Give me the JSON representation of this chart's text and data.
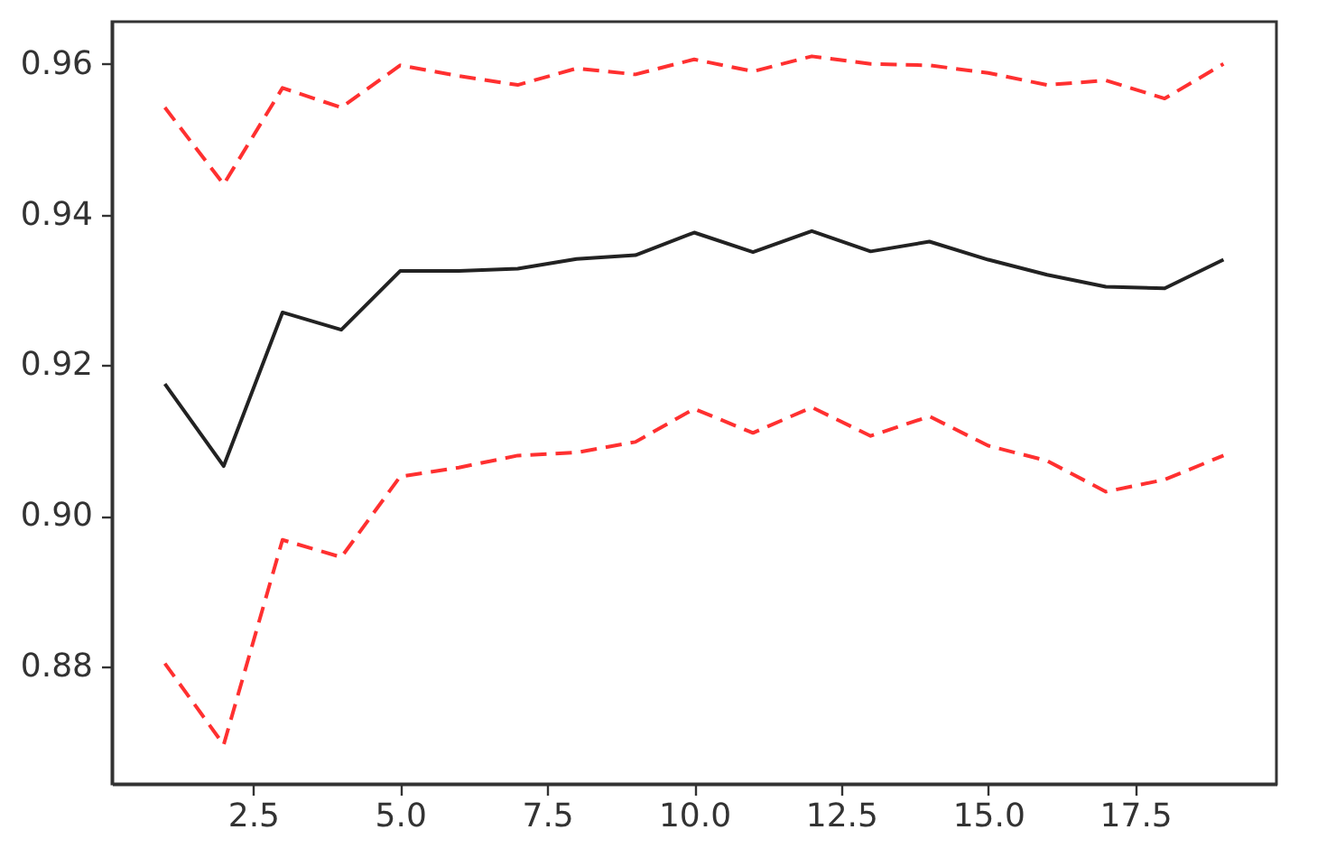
{
  "chart_data": {
    "type": "line",
    "x": [
      1,
      2,
      3,
      4,
      5,
      6,
      7,
      8,
      9,
      10,
      11,
      12,
      13,
      14,
      15,
      16,
      17,
      18,
      19
    ],
    "series": [
      {
        "color": "#ff3030",
        "line_style": "dashed",
        "values": [
          0.9542,
          0.944,
          0.9568,
          0.9542,
          0.9598,
          0.9584,
          0.9572,
          0.9594,
          0.9586,
          0.9606,
          0.959,
          0.961,
          0.96,
          0.9598,
          0.9588,
          0.9572,
          0.9578,
          0.9554,
          0.96
        ]
      },
      {
        "color": "#222222",
        "line_style": "solid",
        "values": [
          0.9175,
          0.9066,
          0.927,
          0.9247,
          0.9325,
          0.9325,
          0.9328,
          0.9341,
          0.9346,
          0.9376,
          0.935,
          0.9378,
          0.9351,
          0.9364,
          0.934,
          0.932,
          0.9304,
          0.9302,
          0.934
        ]
      },
      {
        "color": "#ff3030",
        "line_style": "dashed",
        "values": [
          0.8804,
          0.8696,
          0.8968,
          0.8945,
          0.9052,
          0.9064,
          0.908,
          0.9084,
          0.9098,
          0.9142,
          0.911,
          0.9144,
          0.9106,
          0.9132,
          0.9093,
          0.9073,
          0.9032,
          0.9048,
          0.908
        ]
      }
    ],
    "xlim": [
      0.1,
      19.9
    ],
    "ylim": [
      0.8644,
      0.9656
    ],
    "xticks": [
      2.5,
      {
        "value": 5,
        "label": "5.0"
      },
      7.5,
      {
        "value": 10,
        "label": "10.0"
      },
      12.5,
      {
        "value": 15,
        "label": "15.0"
      },
      17.5
    ],
    "yticks": [
      0.88,
      {
        "value": 0.9,
        "label": "0.90"
      },
      0.92,
      0.94,
      0.96
    ]
  }
}
